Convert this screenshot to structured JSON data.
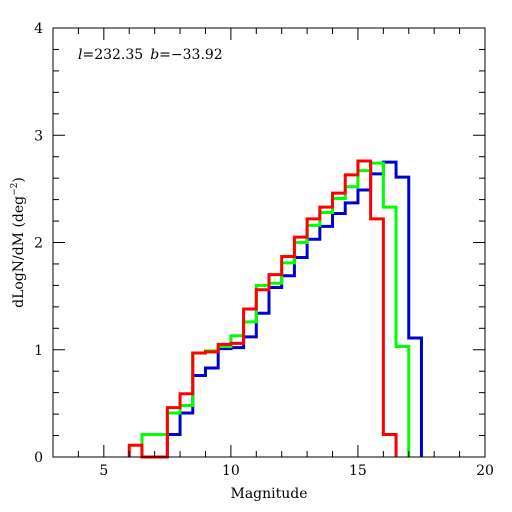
{
  "chart_data": {
    "type": "line",
    "step": true,
    "xlabel": "Magnitude",
    "ylabel": "dLogN/dM (deg",
    "ylabel_sup": "−2",
    "ylabel_close": ")",
    "xlim": [
      3,
      20
    ],
    "ylim": [
      0,
      4
    ],
    "xticks": [
      5,
      10,
      15,
      20
    ],
    "yticks": [
      0,
      1,
      2,
      3,
      4
    ],
    "annotation": {
      "l_symbol": "l",
      "l_value": "=232.35",
      "b_symbol": "b",
      "b_value": "=−33.92"
    },
    "series": [
      {
        "color": "#0000cc",
        "bin_edges": [
          7.5,
          8.0,
          8.5,
          9.0,
          9.5,
          10.0,
          10.5,
          11.0,
          11.5,
          12.0,
          12.5,
          13.0,
          13.5,
          14.0,
          14.5,
          15.0,
          15.5,
          16.0,
          16.5,
          17.0,
          17.5
        ],
        "values": [
          0.21,
          0.41,
          0.76,
          0.83,
          1.01,
          1.02,
          1.12,
          1.34,
          1.58,
          1.69,
          1.86,
          2.03,
          2.15,
          2.27,
          2.37,
          2.49,
          2.64,
          2.75,
          2.61,
          1.11
        ]
      },
      {
        "color": "#00ff00",
        "bin_edges": [
          6.5,
          7.0,
          7.5,
          8.0,
          8.5,
          9.0,
          9.5,
          10.0,
          10.5,
          11.0,
          11.5,
          12.0,
          12.5,
          13.0,
          13.5,
          14.0,
          14.5,
          15.0,
          15.5,
          16.0,
          16.5,
          17.0
        ],
        "values": [
          0.21,
          0.21,
          0.41,
          0.48,
          0.97,
          0.99,
          1.03,
          1.13,
          1.26,
          1.6,
          1.62,
          1.81,
          2.0,
          2.16,
          2.28,
          2.41,
          2.52,
          2.67,
          2.74,
          2.33,
          1.03
        ]
      },
      {
        "color": "#ff0000",
        "bin_edges": [
          6.0,
          6.5,
          7.0,
          7.5,
          8.0,
          8.5,
          9.0,
          9.5,
          10.0,
          10.5,
          11.0,
          11.5,
          12.0,
          12.5,
          13.0,
          13.5,
          14.0,
          14.5,
          15.0,
          15.5,
          16.0,
          16.5
        ],
        "values": [
          0.11,
          0.0,
          0.0,
          0.46,
          0.59,
          0.97,
          0.98,
          1.05,
          1.06,
          1.38,
          1.56,
          1.7,
          1.87,
          2.05,
          2.22,
          2.33,
          2.46,
          2.63,
          2.76,
          2.22,
          0.21
        ]
      }
    ]
  }
}
